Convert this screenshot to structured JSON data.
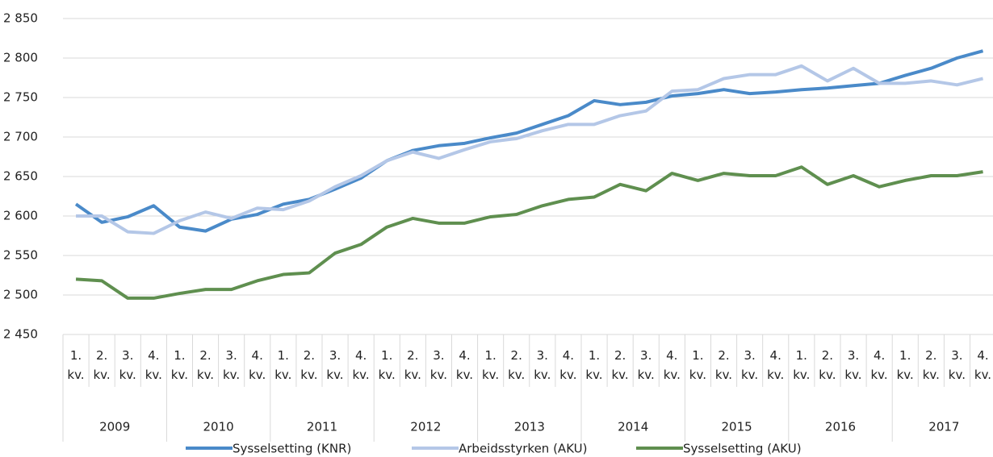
{
  "chart_data": {
    "type": "line",
    "categories": [
      "1. kv.",
      "2. kv.",
      "3. kv.",
      "4. kv.",
      "1. kv.",
      "2. kv.",
      "3. kv.",
      "4. kv.",
      "1. kv.",
      "2. kv.",
      "3. kv.",
      "4. kv.",
      "1. kv.",
      "2. kv.",
      "3. kv.",
      "4. kv.",
      "1. kv.",
      "2. kv.",
      "3. kv.",
      "4. kv.",
      "1. kv.",
      "2. kv.",
      "3. kv.",
      "4. kv.",
      "1. kv.",
      "2. kv.",
      "3. kv.",
      "4. kv.",
      "1. kv.",
      "2. kv.",
      "3. kv.",
      "4. kv.",
      "1. kv.",
      "2. kv.",
      "3. kv.",
      "4. kv."
    ],
    "groups": [
      "2009",
      "2010",
      "2011",
      "2012",
      "2013",
      "2014",
      "2015",
      "2016",
      "2017"
    ],
    "series": [
      {
        "name": "Sysselsetting (KNR)",
        "color": "#4a8ac9",
        "values": [
          2615,
          2592,
          2599,
          2613,
          2586,
          2581,
          2596,
          2602,
          2615,
          2621,
          2634,
          2648,
          2670,
          2683,
          2689,
          2692,
          2699,
          2705,
          2716,
          2727,
          2746,
          2741,
          2744,
          2752,
          2755,
          2760,
          2755,
          2757,
          2760,
          2762,
          2765,
          2768,
          2778,
          2787,
          2800,
          2809
        ]
      },
      {
        "name": "Arbeidsstyrken (AKU)",
        "color": "#b4c7e7",
        "values": [
          2600,
          2600,
          2580,
          2578,
          2594,
          2605,
          2597,
          2610,
          2608,
          2619,
          2637,
          2651,
          2670,
          2681,
          2673,
          2684,
          2694,
          2698,
          2708,
          2716,
          2716,
          2727,
          2733,
          2758,
          2760,
          2774,
          2779,
          2779,
          2790,
          2771,
          2787,
          2768,
          2768,
          2771,
          2766,
          2774
        ]
      },
      {
        "name": "Sysselsetting (AKU)",
        "color": "#5f8f4f",
        "values": [
          2520,
          2518,
          2496,
          2496,
          2502,
          2507,
          2507,
          2518,
          2526,
          2528,
          2553,
          2564,
          2586,
          2597,
          2591,
          2591,
          2599,
          2602,
          2613,
          2621,
          2624,
          2640,
          2632,
          2654,
          2645,
          2654,
          2651,
          2651,
          2662,
          2640,
          2651,
          2637,
          2645,
          2651,
          2651,
          2656
        ]
      }
    ],
    "ylim": [
      2450,
      2850
    ],
    "yticks": [
      {
        "value": 2450,
        "label": "2 450"
      },
      {
        "value": 2500,
        "label": "2 500"
      },
      {
        "value": 2550,
        "label": "2 550"
      },
      {
        "value": 2600,
        "label": "2 600"
      },
      {
        "value": 2650,
        "label": "2 650"
      },
      {
        "value": 2700,
        "label": "2 700"
      },
      {
        "value": 2750,
        "label": "2 750"
      },
      {
        "value": 2800,
        "label": "2 800"
      },
      {
        "value": 2850,
        "label": "2 850"
      }
    ],
    "grid": true,
    "legend": "bottom"
  }
}
